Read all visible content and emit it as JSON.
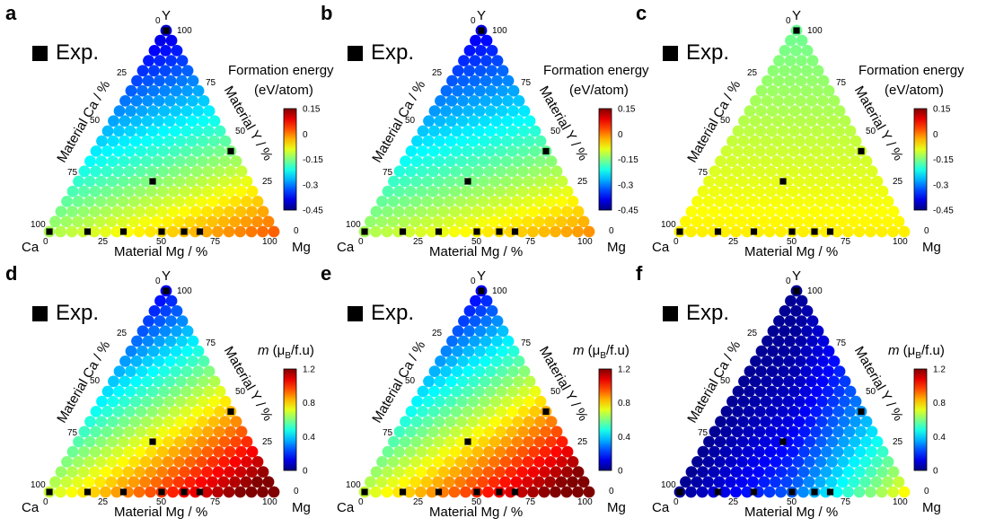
{
  "legend_label": "Exp.",
  "tick_labels": {
    "ca": [
      "100",
      "75",
      "50",
      "25",
      "0"
    ],
    "y": [
      "0",
      "25",
      "50",
      "75",
      "100"
    ],
    "mg": [
      "0",
      "25",
      "50",
      "75",
      "100"
    ]
  },
  "corners": {
    "top": "Y",
    "left": "Ca",
    "right": "Mg"
  },
  "axis_labels": {
    "ca": "Material Ca / %",
    "y": "Material Y / %",
    "mg": "Material Mg / %"
  },
  "colorbars": {
    "formation": {
      "title_line1": "Formation energy",
      "title_line2": "(eV/atom)",
      "ticks": [
        "0.15",
        "0",
        "-0.15",
        "-0.3",
        "-0.45"
      ],
      "range": [
        -0.45,
        0.15
      ]
    },
    "moment": {
      "title_prefix": "m",
      "title_unit_pre": "(μ",
      "title_unit_sub": "B",
      "title_unit_post": "/f.u)",
      "ticks": [
        "1.2",
        "0.8",
        "0.4",
        "0"
      ],
      "range": [
        0,
        1.2
      ]
    }
  },
  "exp_points": [
    {
      "ca": 100,
      "mg": 0,
      "y": 0
    },
    {
      "ca": 83,
      "mg": 17,
      "y": 0
    },
    {
      "ca": 67,
      "mg": 33,
      "y": 0
    },
    {
      "ca": 50,
      "mg": 50,
      "y": 0
    },
    {
      "ca": 40,
      "mg": 60,
      "y": 0
    },
    {
      "ca": 33,
      "mg": 67,
      "y": 0
    },
    {
      "ca": 42,
      "mg": 33,
      "y": 25
    },
    {
      "ca": 0,
      "mg": 60,
      "y": 40
    },
    {
      "ca": 0,
      "mg": 0,
      "y": 100
    }
  ],
  "chart_data": [
    {
      "panel": "a",
      "type": "ternary-scatter",
      "quantity": "formation",
      "colorbar": "formation",
      "model": "formation_a"
    },
    {
      "panel": "b",
      "type": "ternary-scatter",
      "quantity": "formation",
      "colorbar": "formation",
      "model": "formation_b"
    },
    {
      "panel": "c",
      "type": "ternary-scatter",
      "quantity": "formation",
      "colorbar": "formation",
      "model": "formation_c"
    },
    {
      "panel": "d",
      "type": "ternary-scatter",
      "quantity": "moment",
      "colorbar": "moment",
      "model": "moment_d"
    },
    {
      "panel": "e",
      "type": "ternary-scatter",
      "quantity": "moment",
      "colorbar": "moment",
      "model": "moment_e"
    },
    {
      "panel": "f",
      "type": "ternary-scatter",
      "quantity": "moment",
      "colorbar": "moment",
      "model": "moment_f"
    }
  ]
}
